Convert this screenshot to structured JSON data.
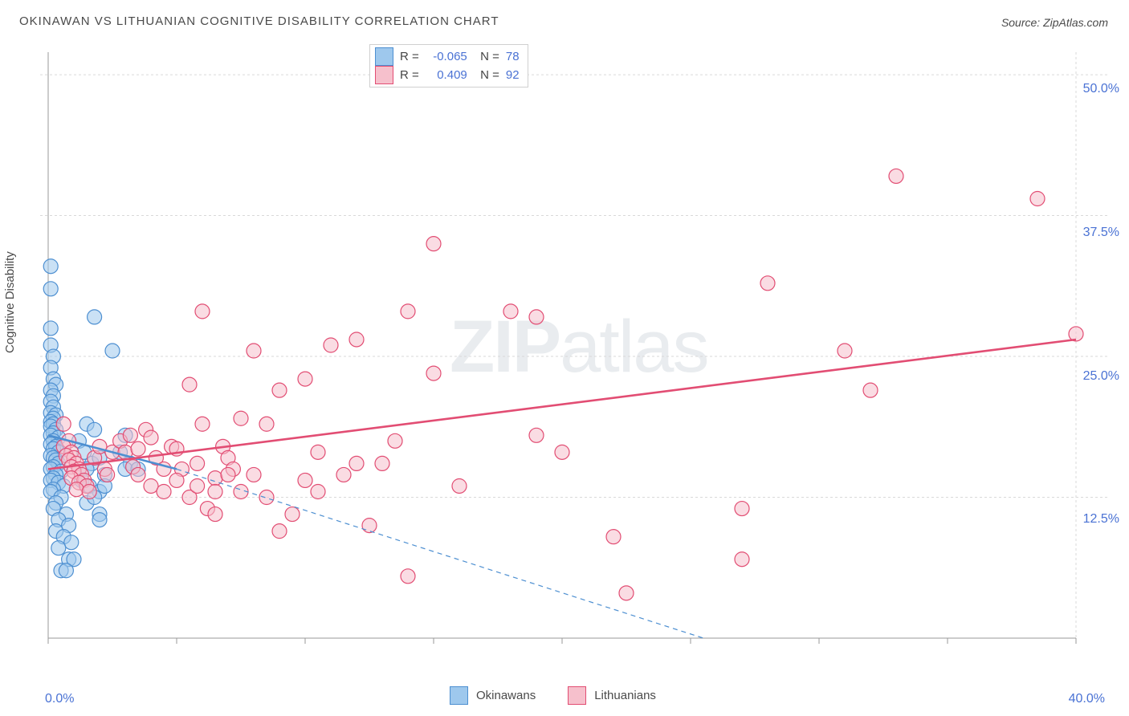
{
  "title": "OKINAWAN VS LITHUANIAN COGNITIVE DISABILITY CORRELATION CHART",
  "source": "Source: ZipAtlas.com",
  "ylabel": "Cognitive Disability",
  "watermark_bold": "ZIP",
  "watermark_rest": "atlas",
  "chart": {
    "type": "scatter",
    "x_min": 0.0,
    "x_max": 40.0,
    "y_min": 0.0,
    "y_max": 52.0,
    "x_ticks": [
      0,
      5,
      10,
      15,
      20,
      25,
      30,
      35,
      40
    ],
    "y_gridlines": [
      12.5,
      25.0,
      37.5,
      50.0
    ],
    "y_tick_labels": [
      "12.5%",
      "25.0%",
      "37.5%",
      "50.0%"
    ],
    "x_min_label": "0.0%",
    "x_max_label": "40.0%",
    "background_color": "#ffffff",
    "grid_color": "#d9d9d9",
    "axis_color": "#999999",
    "tick_label_color": "#4a72d4",
    "marker_radius": 9,
    "marker_stroke_width": 1.2,
    "trend_line_width": 2.6,
    "series": {
      "okinawans": {
        "label": "Okinawans",
        "R": "-0.065",
        "N": "78",
        "fill": "#9ec8ed",
        "stroke": "#4d8fd1",
        "trend_solid": {
          "x1": 0,
          "y1": 18.0,
          "x2": 5,
          "y2": 15.0
        },
        "trend_dash": {
          "x1": 5,
          "y1": 15.0,
          "x2": 25.5,
          "y2": 0.0
        },
        "points": [
          [
            0.1,
            33.0
          ],
          [
            0.1,
            31.0
          ],
          [
            0.1,
            27.5
          ],
          [
            0.1,
            26.0
          ],
          [
            0.2,
            25.0
          ],
          [
            0.1,
            24.0
          ],
          [
            0.2,
            23.0
          ],
          [
            0.3,
            22.5
          ],
          [
            0.1,
            22.0
          ],
          [
            0.2,
            21.5
          ],
          [
            0.1,
            21.0
          ],
          [
            0.2,
            20.5
          ],
          [
            0.1,
            20.0
          ],
          [
            0.3,
            19.8
          ],
          [
            0.2,
            19.5
          ],
          [
            0.1,
            19.2
          ],
          [
            0.2,
            19.0
          ],
          [
            0.1,
            18.8
          ],
          [
            0.3,
            18.5
          ],
          [
            0.2,
            18.2
          ],
          [
            0.1,
            18.0
          ],
          [
            0.4,
            17.8
          ],
          [
            0.2,
            17.5
          ],
          [
            0.1,
            17.2
          ],
          [
            0.3,
            17.0
          ],
          [
            0.2,
            16.8
          ],
          [
            0.4,
            16.5
          ],
          [
            0.1,
            16.2
          ],
          [
            0.2,
            16.0
          ],
          [
            0.3,
            15.8
          ],
          [
            0.4,
            15.5
          ],
          [
            0.2,
            15.2
          ],
          [
            0.1,
            15.0
          ],
          [
            0.5,
            14.8
          ],
          [
            0.3,
            14.5
          ],
          [
            0.2,
            14.2
          ],
          [
            0.1,
            14.0
          ],
          [
            0.4,
            13.8
          ],
          [
            0.6,
            13.5
          ],
          [
            0.2,
            13.2
          ],
          [
            0.1,
            13.0
          ],
          [
            0.5,
            12.5
          ],
          [
            0.3,
            12.0
          ],
          [
            0.2,
            11.5
          ],
          [
            0.7,
            11.0
          ],
          [
            0.4,
            10.5
          ],
          [
            0.8,
            10.0
          ],
          [
            0.3,
            9.5
          ],
          [
            0.6,
            9.0
          ],
          [
            0.9,
            8.5
          ],
          [
            0.4,
            8.0
          ],
          [
            0.8,
            7.0
          ],
          [
            1.0,
            7.0
          ],
          [
            0.5,
            6.0
          ],
          [
            0.7,
            6.0
          ],
          [
            1.8,
            28.5
          ],
          [
            1.5,
            19.0
          ],
          [
            1.2,
            17.5
          ],
          [
            1.8,
            18.5
          ],
          [
            1.4,
            16.5
          ],
          [
            1.7,
            15.5
          ],
          [
            1.5,
            15.0
          ],
          [
            2.0,
            16.0
          ],
          [
            1.3,
            14.0
          ],
          [
            1.6,
            13.5
          ],
          [
            2.2,
            14.5
          ],
          [
            2.0,
            13.0
          ],
          [
            1.5,
            12.0
          ],
          [
            2.0,
            11.0
          ],
          [
            2.2,
            13.5
          ],
          [
            1.8,
            12.5
          ],
          [
            2.5,
            25.5
          ],
          [
            3.0,
            18.0
          ],
          [
            2.8,
            16.5
          ],
          [
            3.2,
            15.5
          ],
          [
            3.0,
            15.0
          ],
          [
            3.5,
            15.0
          ],
          [
            2.0,
            10.5
          ]
        ]
      },
      "lithuanians": {
        "label": "Lithuanians",
        "R": "0.409",
        "N": "92",
        "fill": "#f6c0cc",
        "stroke": "#e24d73",
        "trend_solid": {
          "x1": 0,
          "y1": 15.0,
          "x2": 40,
          "y2": 26.5
        },
        "trend_dash": null,
        "points": [
          [
            0.6,
            19.0
          ],
          [
            0.8,
            17.5
          ],
          [
            0.6,
            17.0
          ],
          [
            0.9,
            16.5
          ],
          [
            0.7,
            16.2
          ],
          [
            1.0,
            16.0
          ],
          [
            0.8,
            15.8
          ],
          [
            1.1,
            15.5
          ],
          [
            0.9,
            15.2
          ],
          [
            1.2,
            15.0
          ],
          [
            1.0,
            14.8
          ],
          [
            1.3,
            14.5
          ],
          [
            0.9,
            14.2
          ],
          [
            1.4,
            14.0
          ],
          [
            1.2,
            13.8
          ],
          [
            1.5,
            13.5
          ],
          [
            1.1,
            13.2
          ],
          [
            1.6,
            13.0
          ],
          [
            1.8,
            16.0
          ],
          [
            2.0,
            17.0
          ],
          [
            2.2,
            15.0
          ],
          [
            2.5,
            16.5
          ],
          [
            2.3,
            14.5
          ],
          [
            2.8,
            17.5
          ],
          [
            3.0,
            16.5
          ],
          [
            3.2,
            18.0
          ],
          [
            3.5,
            16.8
          ],
          [
            3.3,
            15.2
          ],
          [
            3.8,
            18.5
          ],
          [
            3.5,
            14.5
          ],
          [
            4.0,
            17.8
          ],
          [
            4.2,
            16.0
          ],
          [
            4.0,
            13.5
          ],
          [
            4.5,
            15.0
          ],
          [
            4.8,
            17.0
          ],
          [
            4.5,
            13.0
          ],
          [
            5.0,
            16.8
          ],
          [
            5.2,
            15.0
          ],
          [
            5.0,
            14.0
          ],
          [
            5.5,
            22.5
          ],
          [
            5.5,
            12.5
          ],
          [
            5.8,
            15.5
          ],
          [
            6.0,
            19.0
          ],
          [
            5.8,
            13.5
          ],
          [
            6.2,
            11.5
          ],
          [
            6.5,
            14.2
          ],
          [
            6.5,
            13.0
          ],
          [
            6.0,
            29.0
          ],
          [
            6.8,
            17.0
          ],
          [
            7.0,
            16.0
          ],
          [
            7.2,
            15.0
          ],
          [
            7.0,
            14.5
          ],
          [
            7.5,
            19.5
          ],
          [
            7.5,
            13.0
          ],
          [
            6.5,
            11.0
          ],
          [
            8.0,
            25.5
          ],
          [
            8.5,
            19.0
          ],
          [
            8.0,
            14.5
          ],
          [
            8.5,
            12.5
          ],
          [
            9.0,
            22.0
          ],
          [
            9.0,
            9.5
          ],
          [
            9.5,
            11.0
          ],
          [
            10.0,
            23.0
          ],
          [
            10.5,
            16.5
          ],
          [
            10.0,
            14.0
          ],
          [
            10.5,
            13.0
          ],
          [
            11.0,
            26.0
          ],
          [
            11.5,
            14.5
          ],
          [
            12.0,
            26.5
          ],
          [
            12.0,
            15.5
          ],
          [
            12.5,
            10.0
          ],
          [
            13.0,
            15.5
          ],
          [
            13.5,
            17.5
          ],
          [
            14.0,
            29.0
          ],
          [
            14.0,
            5.5
          ],
          [
            15.0,
            35.0
          ],
          [
            15.0,
            23.5
          ],
          [
            16.0,
            13.5
          ],
          [
            18.0,
            29.0
          ],
          [
            19.0,
            28.5
          ],
          [
            19.0,
            18.0
          ],
          [
            20.0,
            16.5
          ],
          [
            22.0,
            9.0
          ],
          [
            22.5,
            4.0
          ],
          [
            27.0,
            11.5
          ],
          [
            27.0,
            7.0
          ],
          [
            28.0,
            31.5
          ],
          [
            31.0,
            25.5
          ],
          [
            32.0,
            22.0
          ],
          [
            33.0,
            41.0
          ],
          [
            38.5,
            39.0
          ],
          [
            40.0,
            27.0
          ]
        ]
      }
    }
  }
}
